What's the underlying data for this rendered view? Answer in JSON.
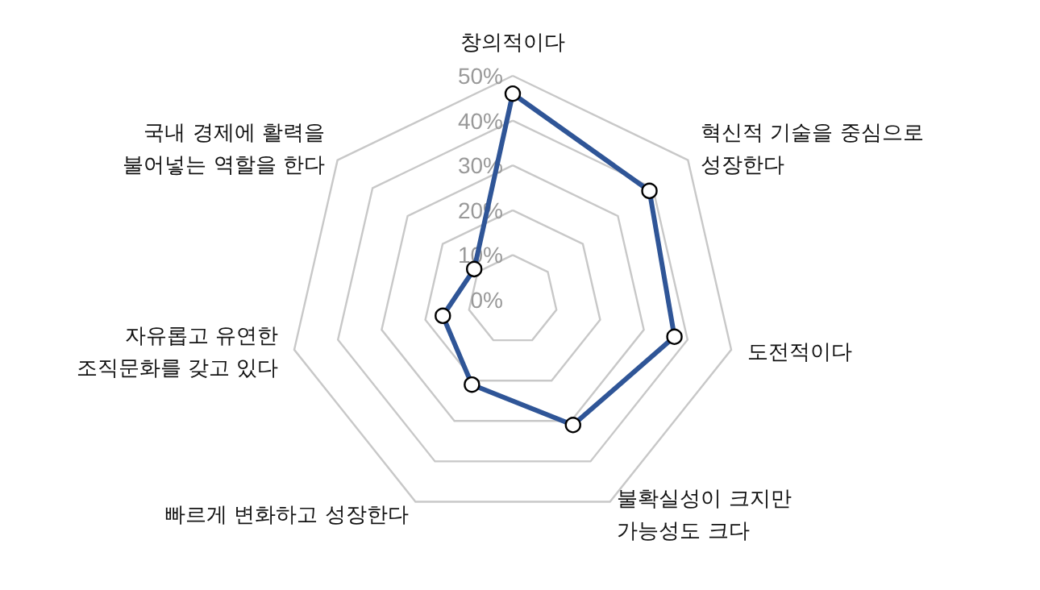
{
  "chart_data": {
    "type": "radar",
    "categories": [
      "창의적이다",
      "혁신적 기술을 중심으로\n성장한다",
      "도전적이다",
      "불확실성이 크지만\n가능성도 크다",
      "빠르게 변화하고 성장한다",
      "자유롭고 유연한\n조직문화를 갖고 있다",
      "국내 경제에 활력을\n불어넣는 역할을 한다"
    ],
    "series": [
      {
        "color": "#2f5597",
        "values": [
          46,
          39,
          37,
          31,
          21,
          16,
          11
        ]
      }
    ],
    "ylim": [
      0,
      50
    ],
    "yticks": [
      {
        "value": 0,
        "label": "0%"
      },
      {
        "value": 10,
        "label": "10%"
      },
      {
        "value": 20,
        "label": "20%"
      },
      {
        "value": 30,
        "label": "30%"
      },
      {
        "value": 40,
        "label": "40%"
      },
      {
        "value": 50,
        "label": "50%"
      }
    ],
    "grid": true,
    "marker": "circle",
    "line_style": "solid"
  }
}
